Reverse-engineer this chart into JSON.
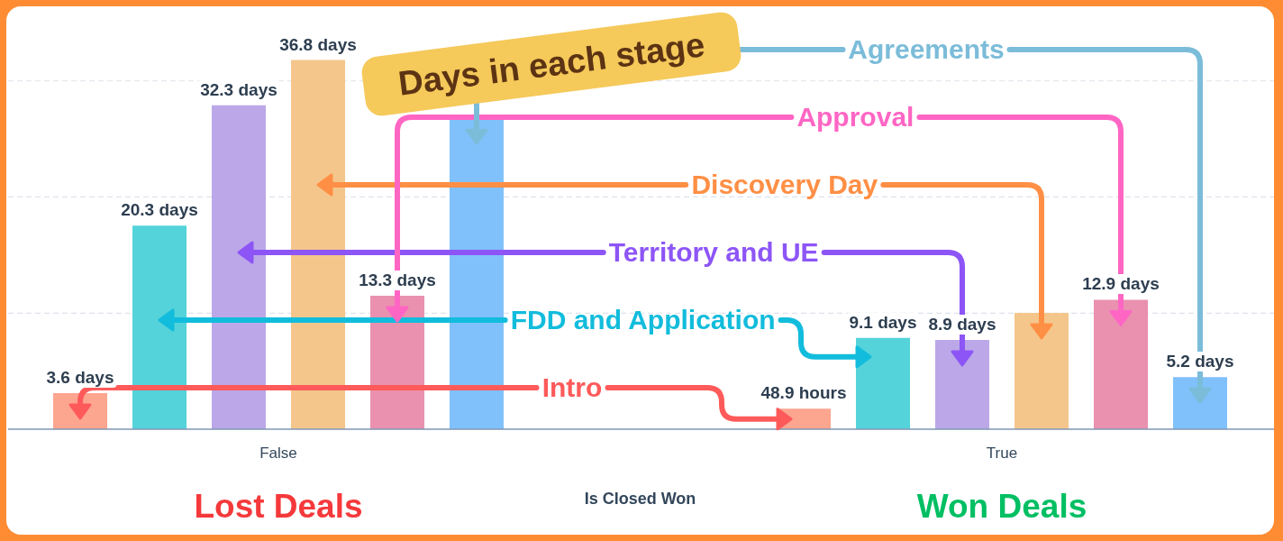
{
  "chart_data": {
    "type": "bar",
    "title": "Days in each stage",
    "xlabel": "Is Closed Won",
    "categories": [
      "False",
      "True"
    ],
    "series": [
      {
        "name": "Intro",
        "color": "#fca58f",
        "values": [
          3.6,
          2.0375
        ],
        "value_labels": [
          "3.6 days",
          null
        ]
      },
      {
        "name": "FDD and Application",
        "color": "#54d3da",
        "values": [
          20.3,
          9.1
        ],
        "value_labels": [
          "20.3 days",
          "9.1 days"
        ]
      },
      {
        "name": "Territory and UE",
        "color": "#bca8e8",
        "values": [
          32.3,
          8.9
        ],
        "value_labels": [
          "32.3 days",
          "8.9 days"
        ]
      },
      {
        "name": "Discovery Day",
        "color": "#f4c68c",
        "values": [
          36.8,
          11.6
        ],
        "value_labels": [
          "36.8 days",
          null
        ]
      },
      {
        "name": "Approval",
        "color": "#e991ae",
        "values": [
          13.3,
          12.9
        ],
        "value_labels": [
          "13.3 days",
          "12.9 days"
        ]
      },
      {
        "name": "Agreements",
        "color": "#80c1fb",
        "values": [
          31,
          5.2
        ],
        "value_labels": [
          null,
          "5.2 days"
        ]
      }
    ],
    "yticks": [
      {
        "value": 11.57,
        "label": null
      },
      {
        "value": 23.15,
        "label": null
      },
      {
        "value": 34.72,
        "label": null
      }
    ],
    "grid": "y",
    "tick_labels": "x",
    "annotations": [
      "Lost Deals",
      "Won Deals",
      {
        "text": "48.9 hours",
        "y": 2.0375
      }
    ]
  }
}
